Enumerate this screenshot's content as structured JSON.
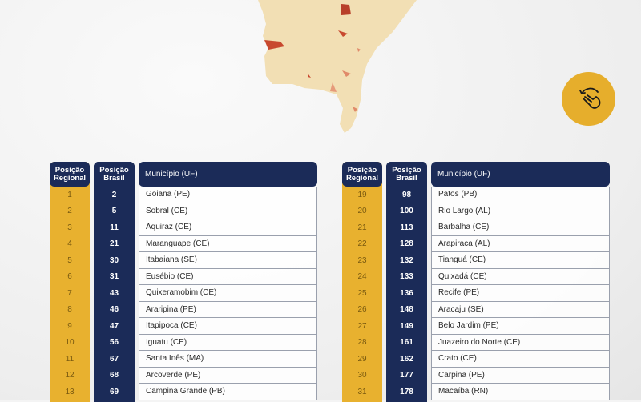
{
  "colors": {
    "yellow": "#e8b12f",
    "navy": "#1b2b58",
    "map_base": "#f2dfb4",
    "map_high": "#c8492f"
  },
  "rotate_button": {
    "icon": "hand-rotate-icon"
  },
  "headers": {
    "regional": [
      "Posição",
      "Regional"
    ],
    "brasil": [
      "Posição",
      "Brasil"
    ],
    "municipio": "Município (UF)"
  },
  "left_table": [
    {
      "regional": "1",
      "brasil": "2",
      "municipio": "Goiana (PE)"
    },
    {
      "regional": "2",
      "brasil": "5",
      "municipio": "Sobral (CE)"
    },
    {
      "regional": "3",
      "brasil": "11",
      "municipio": "Aquiraz (CE)"
    },
    {
      "regional": "4",
      "brasil": "21",
      "municipio": "Maranguape (CE)"
    },
    {
      "regional": "5",
      "brasil": "30",
      "municipio": "Itabaiana (SE)"
    },
    {
      "regional": "6",
      "brasil": "31",
      "municipio": "Eusébio (CE)"
    },
    {
      "regional": "7",
      "brasil": "43",
      "municipio": "Quixeramobim (CE)"
    },
    {
      "regional": "8",
      "brasil": "46",
      "municipio": "Araripina (PE)"
    },
    {
      "regional": "9",
      "brasil": "47",
      "municipio": "Itapipoca (CE)"
    },
    {
      "regional": "10",
      "brasil": "56",
      "municipio": "Iguatu (CE)"
    },
    {
      "regional": "11",
      "brasil": "67",
      "municipio": "Santa Inês (MA)"
    },
    {
      "regional": "12",
      "brasil": "68",
      "municipio": "Arcoverde (PE)"
    },
    {
      "regional": "13",
      "brasil": "69",
      "municipio": "Campina Grande (PB)"
    }
  ],
  "right_table": [
    {
      "regional": "19",
      "brasil": "98",
      "municipio": "Patos (PB)"
    },
    {
      "regional": "20",
      "brasil": "100",
      "municipio": "Rio Largo (AL)"
    },
    {
      "regional": "21",
      "brasil": "113",
      "municipio": "Barbalha (CE)"
    },
    {
      "regional": "22",
      "brasil": "128",
      "municipio": "Arapiraca (AL)"
    },
    {
      "regional": "23",
      "brasil": "132",
      "municipio": "Tianguá (CE)"
    },
    {
      "regional": "24",
      "brasil": "133",
      "municipio": "Quixadá (CE)"
    },
    {
      "regional": "25",
      "brasil": "136",
      "municipio": "Recife (PE)"
    },
    {
      "regional": "26",
      "brasil": "148",
      "municipio": "Aracaju (SE)"
    },
    {
      "regional": "27",
      "brasil": "149",
      "municipio": "Belo Jardim (PE)"
    },
    {
      "regional": "28",
      "brasil": "161",
      "municipio": "Juazeiro do Norte (CE)"
    },
    {
      "regional": "29",
      "brasil": "162",
      "municipio": "Crato (CE)"
    },
    {
      "regional": "30",
      "brasil": "177",
      "municipio": "Carpina (PE)"
    },
    {
      "regional": "31",
      "brasil": "178",
      "municipio": "Macaíba (RN)"
    }
  ]
}
